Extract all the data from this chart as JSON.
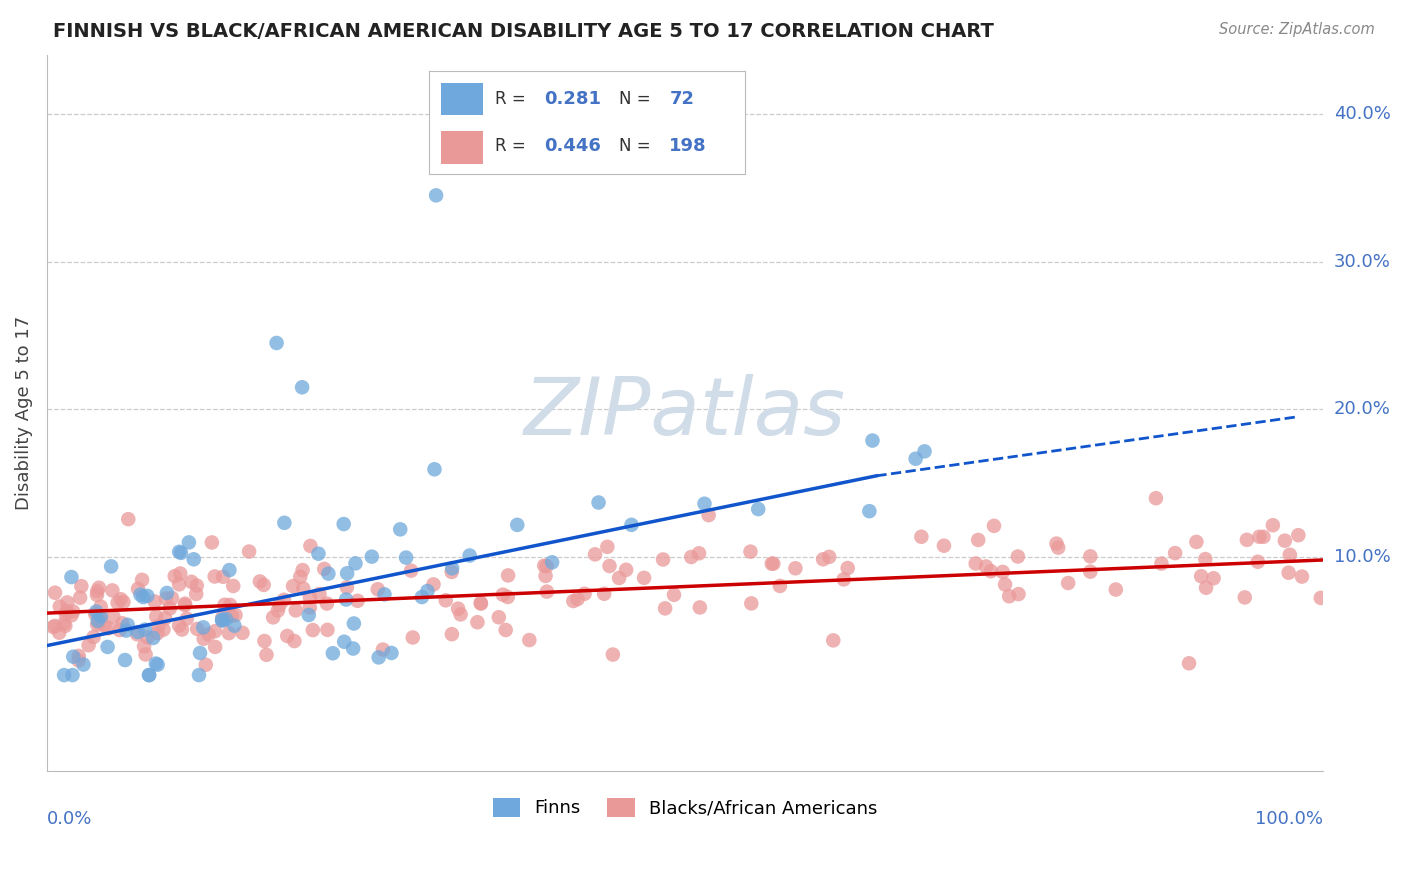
{
  "title": "FINNISH VS BLACK/AFRICAN AMERICAN DISABILITY AGE 5 TO 17 CORRELATION CHART",
  "source": "Source: ZipAtlas.com",
  "ylabel": "Disability Age 5 to 17",
  "ylim": [
    -0.045,
    0.44
  ],
  "xlim": [
    0.0,
    1.0
  ],
  "legend_r_blue": "0.281",
  "legend_n_blue": "72",
  "legend_r_pink": "0.446",
  "legend_n_pink": "198",
  "blue_color": "#6fa8dc",
  "pink_color": "#ea9999",
  "blue_line_color": "#1155cc",
  "pink_line_color": "#cc0000",
  "blue_line_solid_end": 0.65,
  "blue_line_x0": 0.0,
  "blue_line_y0": 0.04,
  "blue_line_y_at_65": 0.155,
  "blue_line_y_at_100": 0.195,
  "pink_line_x0": 0.0,
  "pink_line_y0": 0.062,
  "pink_line_y1": 0.098,
  "ytick_positions": [
    0.1,
    0.2,
    0.3,
    0.4
  ],
  "ytick_labels": [
    "10.0%",
    "20.0%",
    "30.0%",
    "40.0%"
  ],
  "xtick_labels_left": "0.0%",
  "xtick_labels_right": "100.0%",
  "watermark_text": "ZIPatlas",
  "label_color": "#4472c4",
  "title_color": "#222222",
  "source_color": "#888888",
  "grid_color": "#cccccc",
  "legend_label_blue": "Finns",
  "legend_label_pink": "Blacks/African Americans"
}
